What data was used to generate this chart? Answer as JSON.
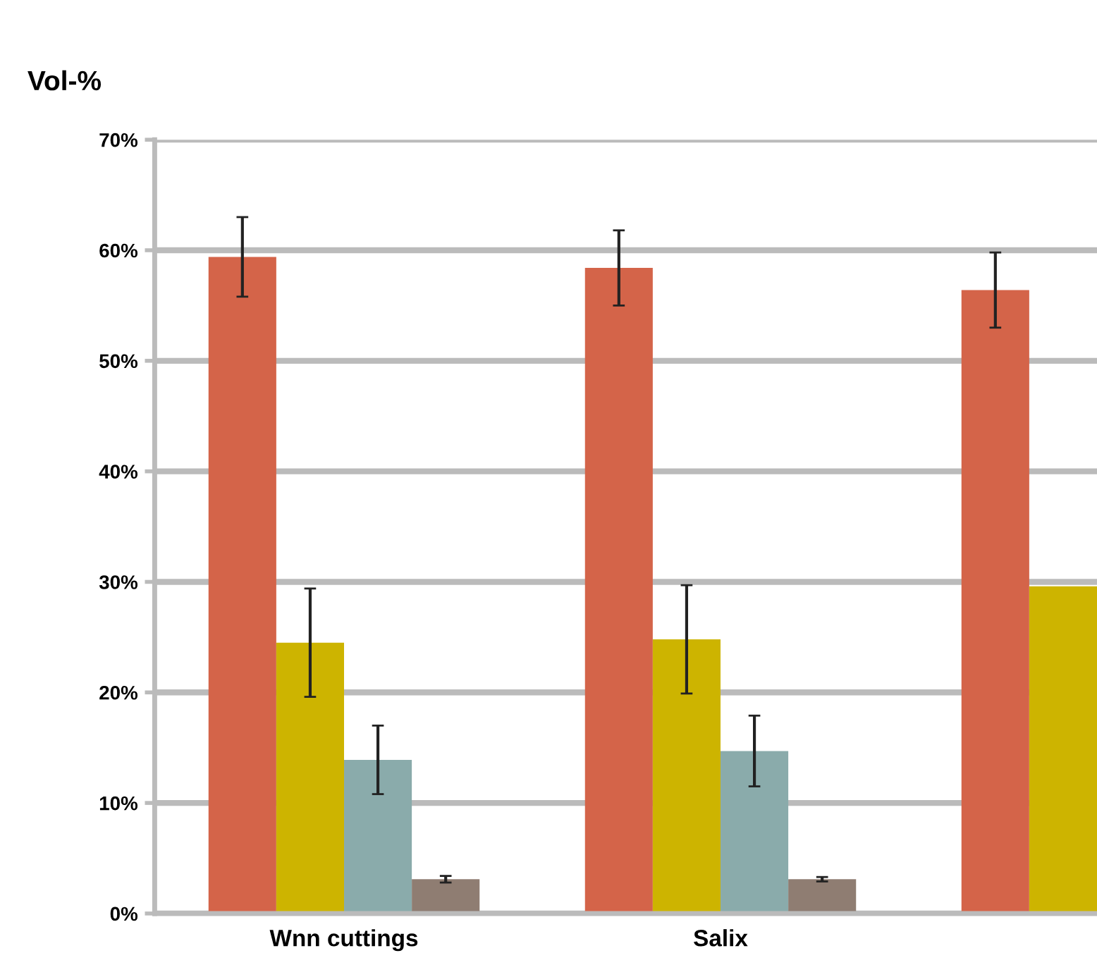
{
  "chart_data": {
    "type": "bar",
    "ylabel": "Vol-%",
    "categories": [
      "Wnn cuttings",
      "Salix",
      null
    ],
    "series": [
      {
        "color": "#d46449",
        "values": [
          59.4,
          58.4,
          56.4
        ],
        "errors": [
          3.6,
          3.4,
          3.4
        ]
      },
      {
        "color": "#cdb400",
        "values": [
          24.5,
          24.8,
          29.6
        ],
        "errors": [
          4.9,
          4.9,
          null
        ]
      },
      {
        "color": "#8aabab",
        "values": [
          13.9,
          14.7,
          null
        ],
        "errors": [
          3.1,
          3.2,
          null
        ]
      },
      {
        "color": "#8f7d72",
        "values": [
          3.1,
          3.1,
          null
        ],
        "errors": [
          0.3,
          0.2,
          null
        ]
      }
    ],
    "ylim": [
      0,
      70
    ],
    "yticks": [
      {
        "value": 0,
        "label": "0%"
      },
      {
        "value": 10,
        "label": "10%"
      },
      {
        "value": 20,
        "label": "20%"
      },
      {
        "value": 30,
        "label": "30%"
      },
      {
        "value": 40,
        "label": "40%"
      },
      {
        "value": 50,
        "label": "50%"
      },
      {
        "value": 60,
        "label": "60%"
      },
      {
        "value": 70,
        "label": "70%"
      }
    ],
    "grid": "y"
  }
}
